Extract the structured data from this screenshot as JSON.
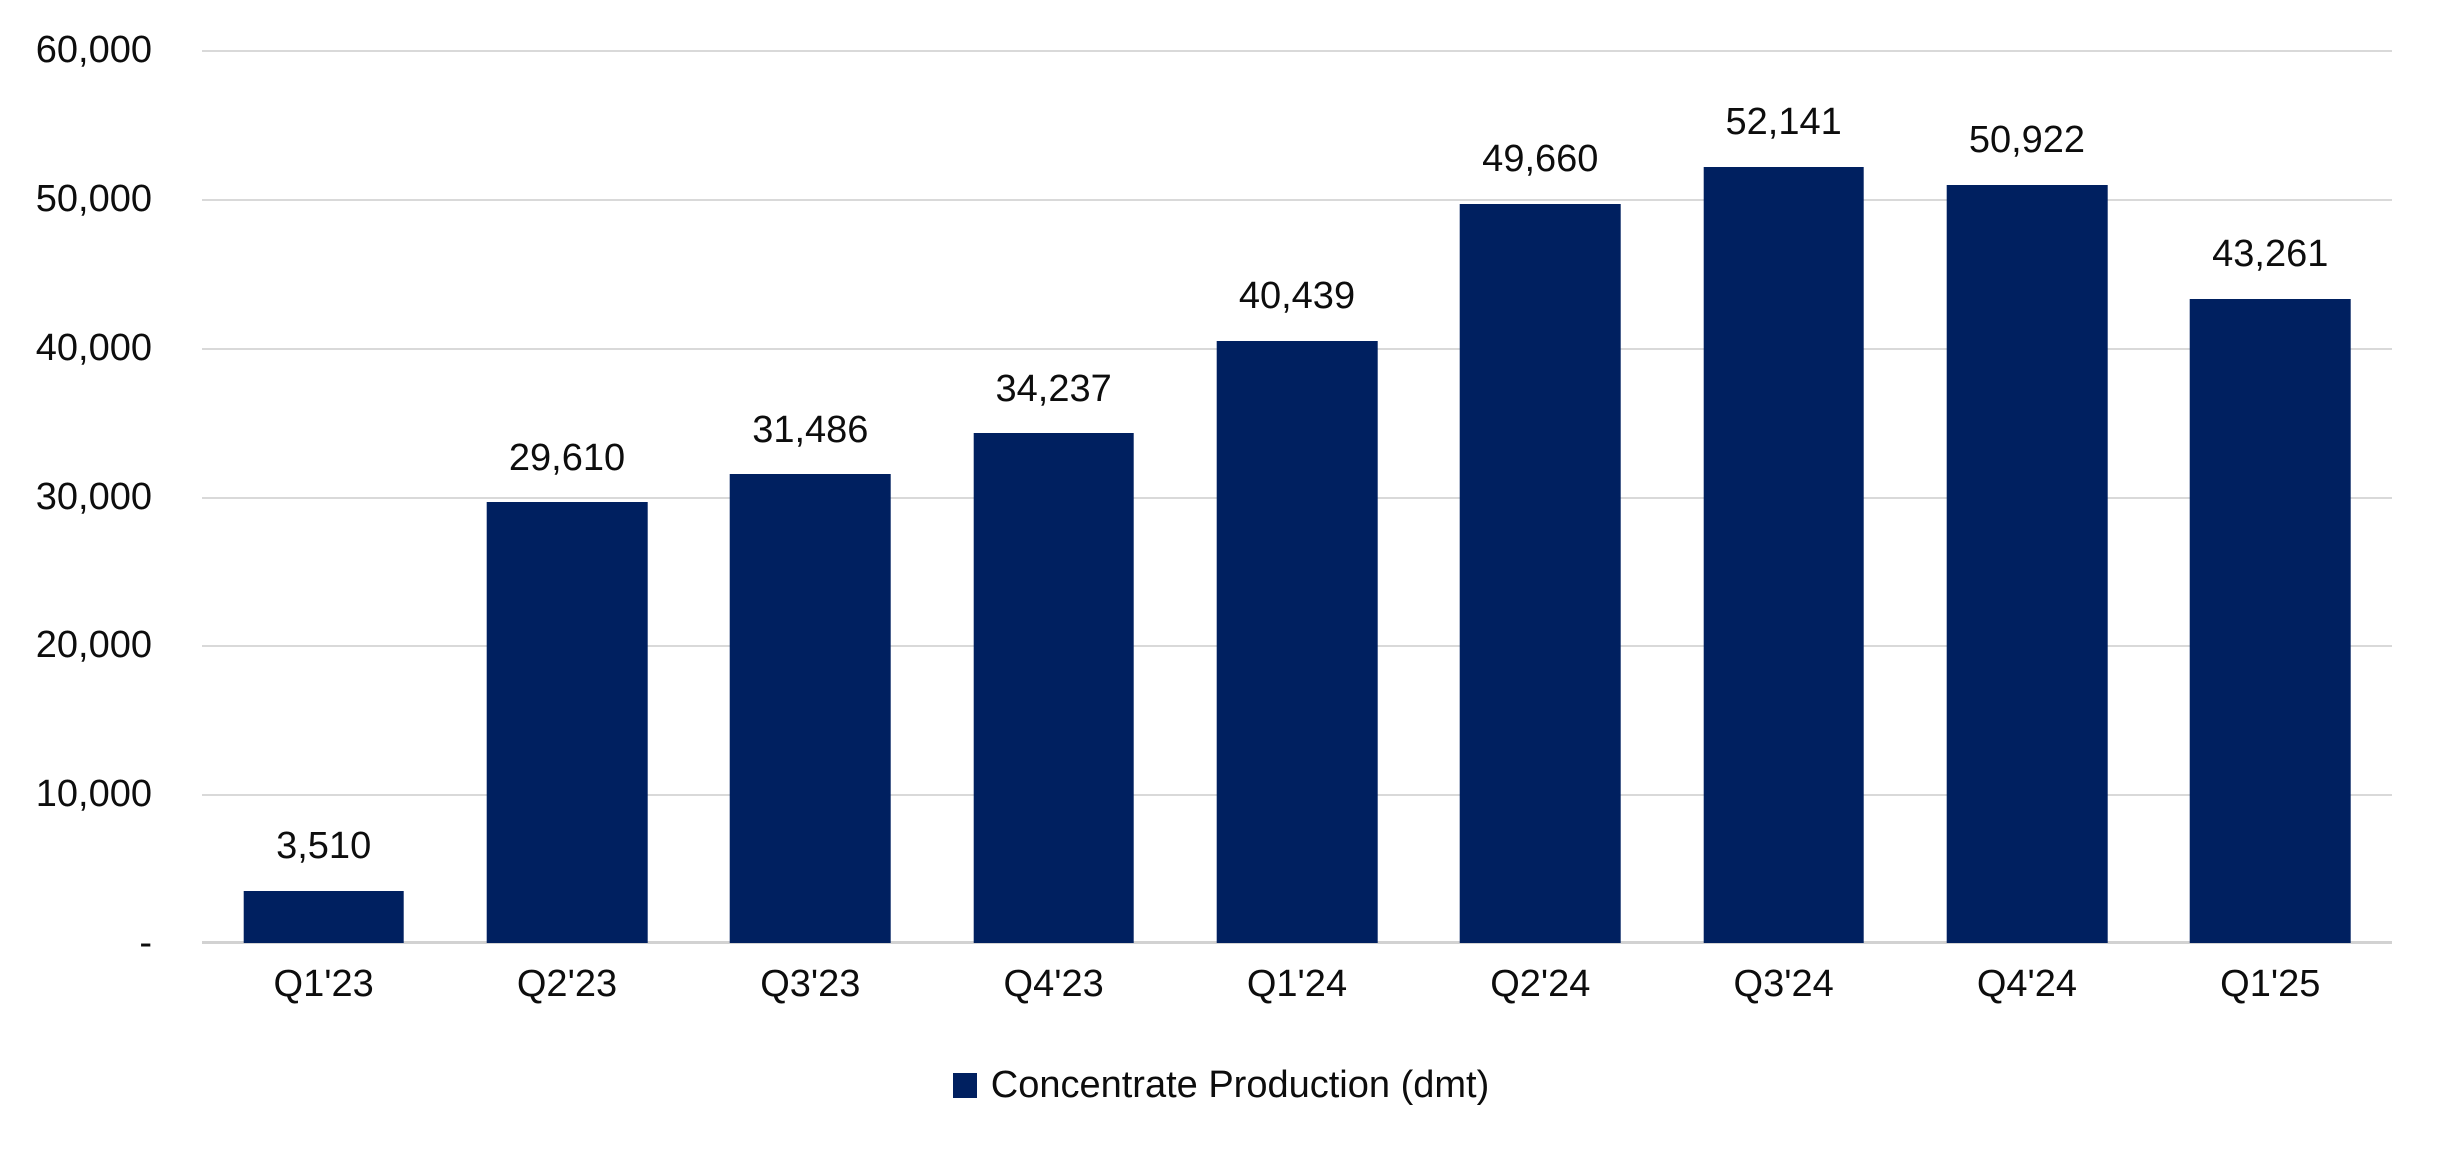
{
  "chart_data": {
    "type": "bar",
    "categories": [
      "Q1'23",
      "Q2'23",
      "Q3'23",
      "Q4'23",
      "Q1'24",
      "Q2'24",
      "Q3'24",
      "Q4'24",
      "Q1'25"
    ],
    "values": [
      3510,
      29610,
      31486,
      34237,
      40439,
      49660,
      52141,
      50922,
      43261
    ],
    "value_labels": [
      "3,510",
      "29,610",
      "31,486",
      "34,237",
      "40,439",
      "49,660",
      "52,141",
      "50,922",
      "43,261"
    ],
    "series_name": "Concentrate Production (dmt)",
    "title": "",
    "xlabel": "",
    "ylabel": "",
    "ylim": [
      0,
      60000
    ],
    "y_ticks": [
      {
        "value": 60000,
        "label": "60,000"
      },
      {
        "value": 50000,
        "label": "50,000"
      },
      {
        "value": 40000,
        "label": "40,000"
      },
      {
        "value": 30000,
        "label": "30,000"
      },
      {
        "value": 20000,
        "label": "20,000"
      },
      {
        "value": 10000,
        "label": "10,000"
      },
      {
        "value": 0,
        "label": "-"
      }
    ],
    "grid": true,
    "legend_position": "bottom",
    "bar_color": "#002060",
    "gridline_color": "#d9d9d9",
    "text_color": "#0d0d0d",
    "background_color": "#ffffff"
  }
}
